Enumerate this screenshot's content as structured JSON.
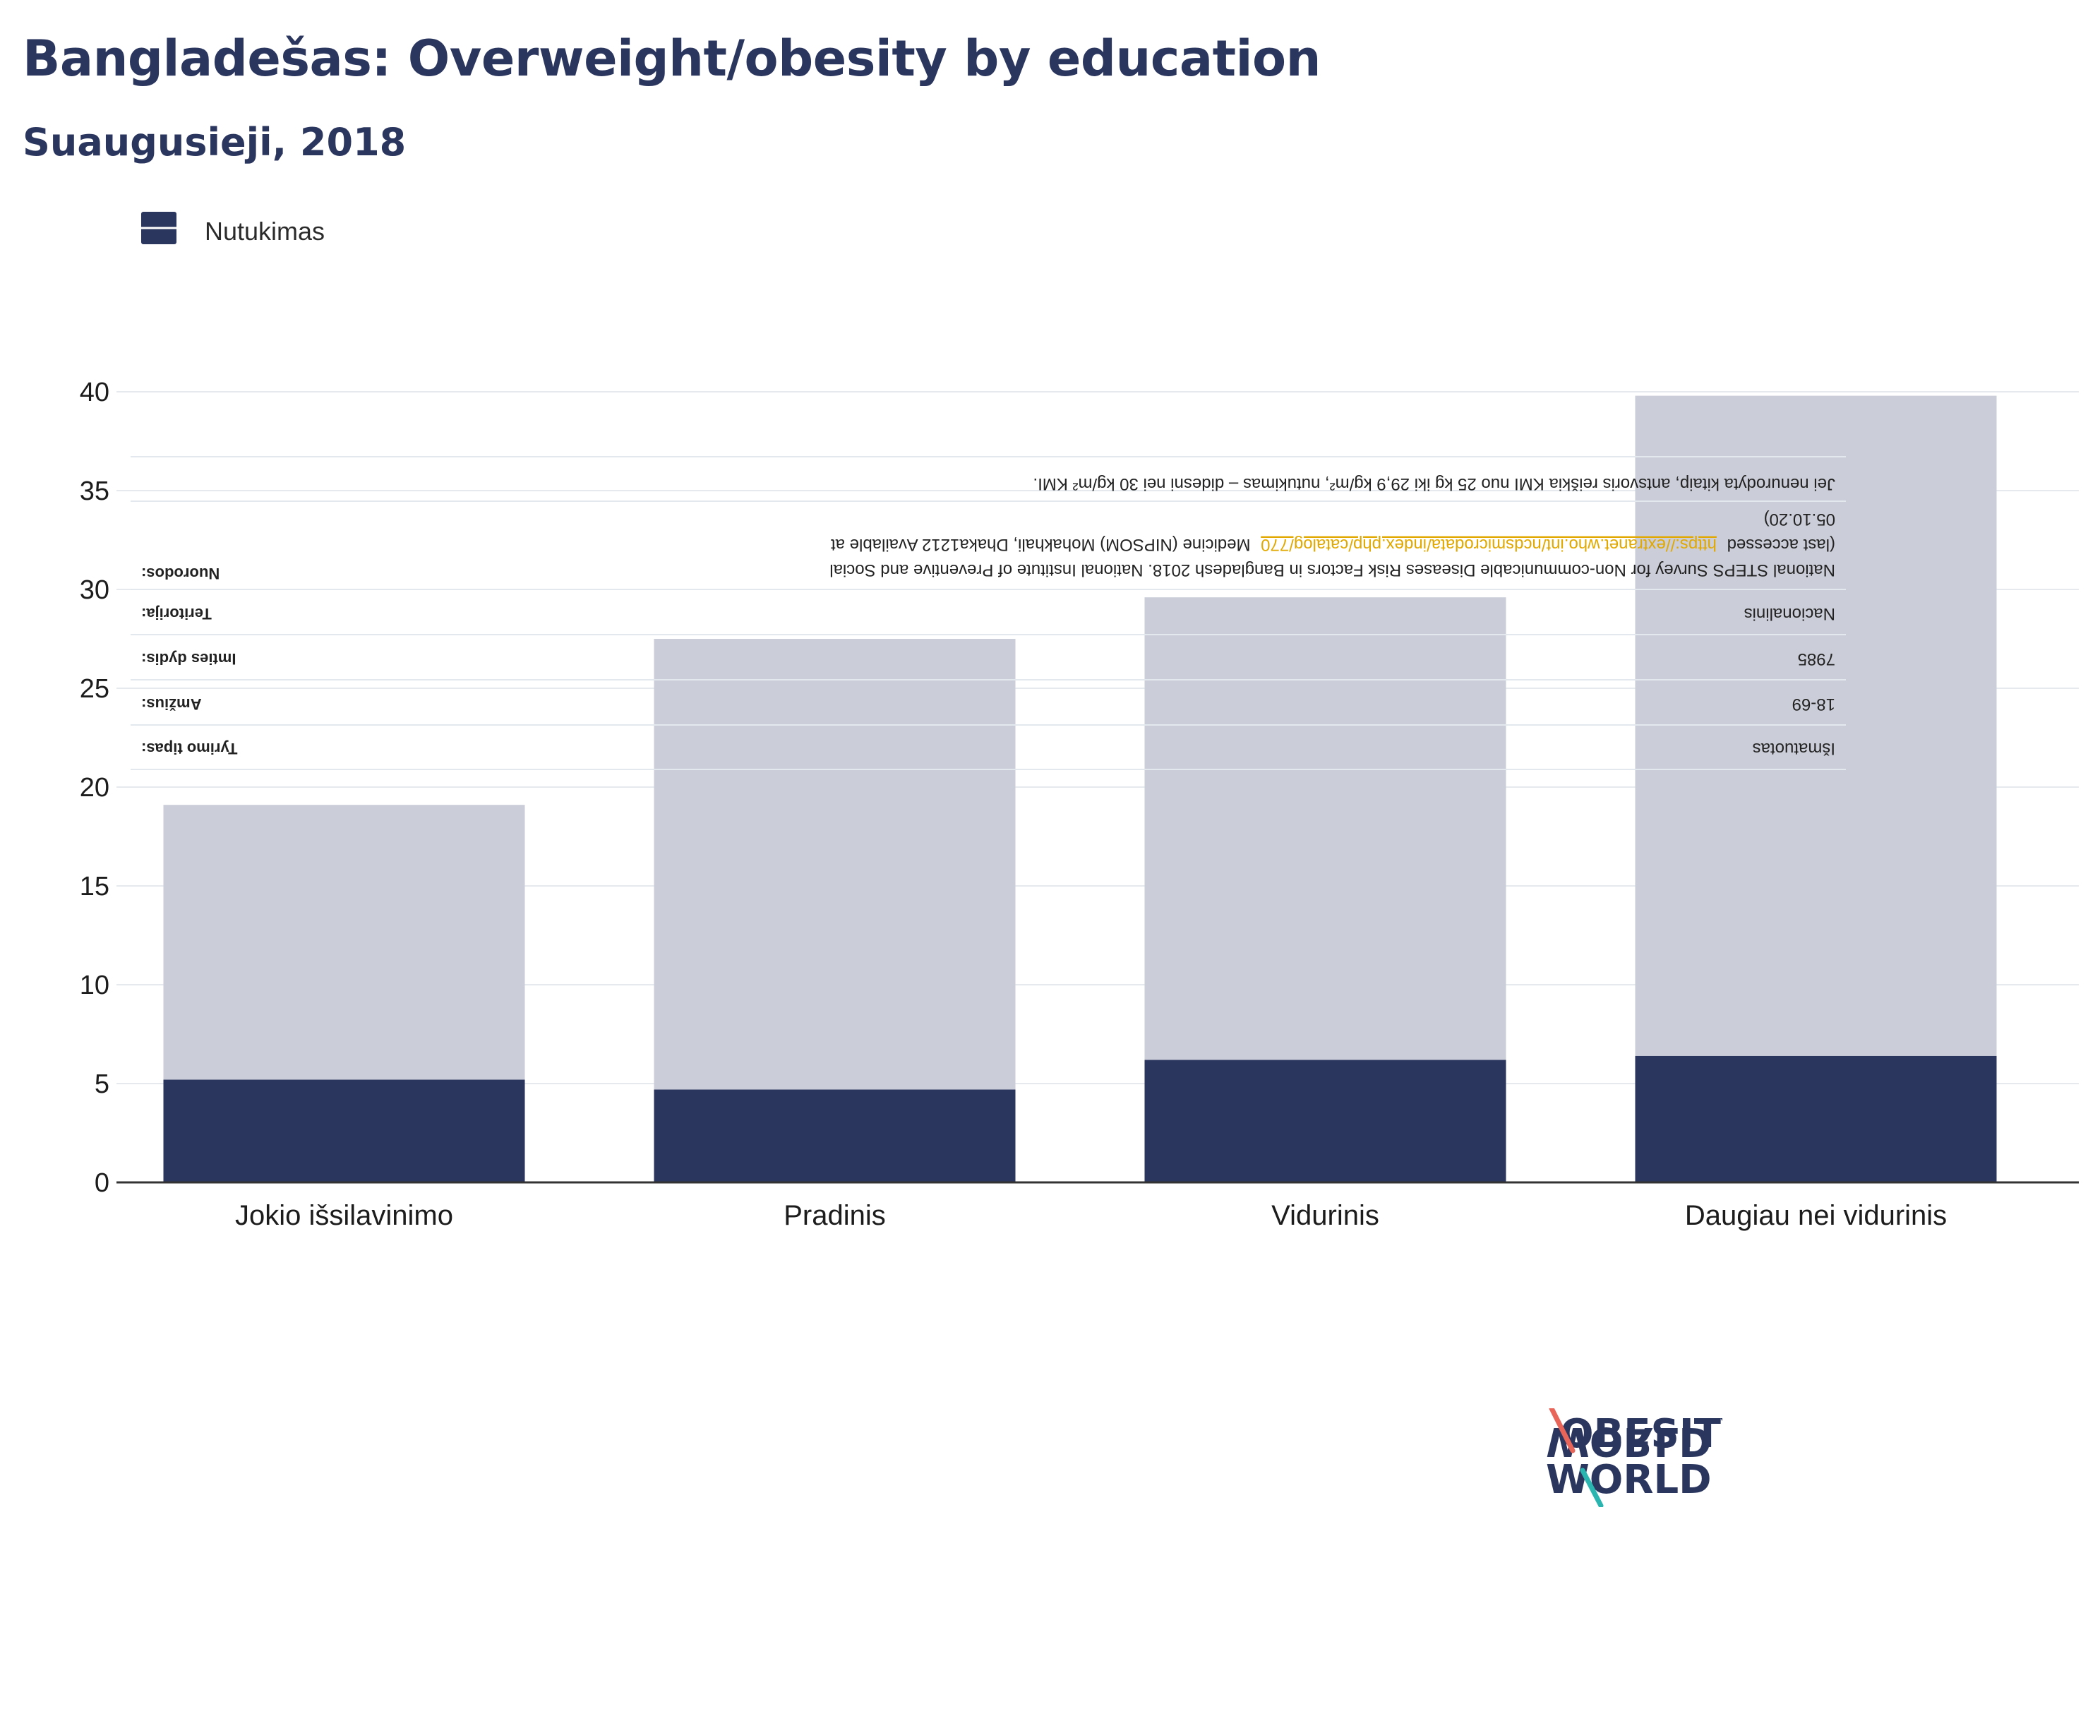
{
  "title": "Bangladešas: Overweight/obesity by education",
  "subtitle": "Suaugusieji, 2018",
  "colors": {
    "obesity": "#2b365f",
    "overweight": "#cbcdd8",
    "grid": "#e6eaef",
    "axis": "#333333",
    "link": "#e0a800"
  },
  "legend": {
    "label": "Nutukimas"
  },
  "info_table": {
    "note": "Jei nenurodyta kitaip, antsvoris reiškia KMI nuo 25 kg iki 29,9 kg/m², nutukimas – didesni nei 30 kg/m² KMI.",
    "rows": [
      {
        "key": "Nuorodos:",
        "value_lines": [
          "National STEPS Survey for Non-communicable Diseases Risk Factors in Bangladesh 2018. National Institute of Preventive and Social",
          "Medicine (NIPSOM) Mohakhali, Dhaka1212 Available at",
          "https://extranet.who.int/ncdsmicrodata/index.php/catalog/770",
          "(last accessed",
          "05.10.20)"
        ]
      },
      {
        "key": "Teritorija:",
        "value": "Nacionalinis"
      },
      {
        "key": "Imties dydis:",
        "value": "7985"
      },
      {
        "key": "Amžius:",
        "value": "18-69"
      },
      {
        "key": "Tyrimo tipas:",
        "value": "Išmatuotas"
      }
    ]
  },
  "chart_data": {
    "type": "bar",
    "stacked": true,
    "categories": [
      "Jokio išsilavinimo",
      "Pradinis",
      "Vidurinis",
      "Daugiau nei vidurinis"
    ],
    "series": [
      {
        "name": "Nutukimas",
        "values": [
          5.2,
          4.7,
          6.2,
          6.4
        ]
      },
      {
        "values": [
          13.9,
          22.8,
          23.4,
          33.4
        ]
      }
    ],
    "ylim": [
      0,
      40
    ],
    "yticks": [
      0,
      5,
      10,
      15,
      20,
      25,
      30,
      35,
      40
    ],
    "grid": true,
    "legend_position": "top-left"
  }
}
